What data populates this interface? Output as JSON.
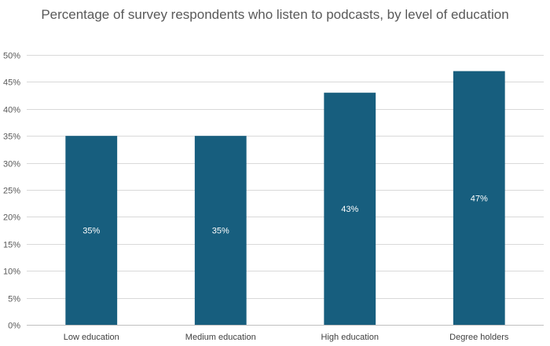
{
  "chart_data": {
    "type": "bar",
    "title": "Percentage of survey respondents who listen to podcasts, by level of education",
    "xlabel": "",
    "ylabel": "",
    "categories": [
      "Low education",
      "Medium education",
      "High education",
      "Degree holders"
    ],
    "values": [
      35,
      35,
      43,
      47
    ],
    "data_labels": [
      "35%",
      "35%",
      "43%",
      "47%"
    ],
    "ylim": [
      0,
      50
    ],
    "yticks": [
      0,
      5,
      10,
      15,
      20,
      25,
      30,
      35,
      40,
      45,
      50
    ],
    "ytick_labels": [
      "0%",
      "5%",
      "10%",
      "15%",
      "20%",
      "25%",
      "30%",
      "35%",
      "40%",
      "45%",
      "50%"
    ],
    "grid": true,
    "legend": "none",
    "bar_color": "#175E7E"
  }
}
